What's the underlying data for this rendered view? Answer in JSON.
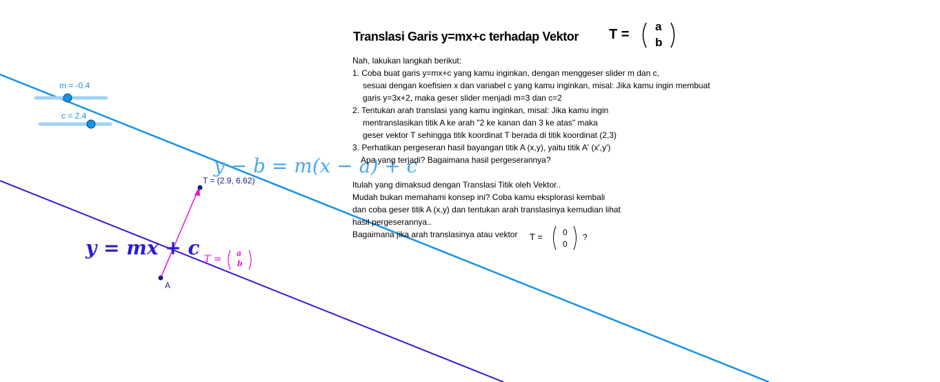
{
  "sliders": [
    {
      "label": "m = -0.4"
    },
    {
      "label": "c = 2.4"
    }
  ],
  "points": {
    "A": "A",
    "T": "T = (2.9, 6.62)"
  },
  "formulas": {
    "translated": "y − b = m(x − a) + c",
    "line": "y = mx + c",
    "vector": {
      "symbol": "T =",
      "top": "a",
      "bottom": "b"
    }
  },
  "panel": {
    "title": "Translasi Garis y=mx+c terhadap Vektor",
    "vector": {
      "symbol": "T =",
      "top": "a",
      "bottom": "b"
    },
    "lines": [
      "Nah, lakukan langkah berikut:",
      "1. Coba buat garis y=mx+c yang kamu inginkan, dengan menggeser slider m dan c,",
      "sesuai dengan koefisien x dan variabel c yang kamu inginkan, misal: Jika kamu ingin membuat",
      "garis y=3x+2, maka geser slider menjadi m=3 dan c=2",
      "2. Tentukan arah translasi yang kamu inginkan, misal: Jika kamu ingin",
      "mentranslasikan titik A ke arah \"2 ke kanan dan 3 ke atas\" maka",
      "geser vektor T sehingga titik koordinat T berada di titik koordinat (2,3)",
      "3. Perhatikan pergeseran hasil bayangan titik A (x,y), yaitu titik A' (x',y')",
      "Apa yang terjadi? Bagaimana hasil pergeserannya?",
      "Itulah yang dimaksud dengan Translasi Titik oleh Vektor..",
      "Mudah bukan memahami konsep ini? Coba kamu eksplorasi kembali",
      "dan coba geser titik A (x,y) dan tentukan arah translasinya kemudian lihat",
      "hasil pergeserannya.."
    ],
    "question": {
      "text": "Bagaimana jika arah translasinya atau vektor",
      "symbol": "T =",
      "top": "0",
      "bottom": "0",
      "end": "?"
    }
  }
}
